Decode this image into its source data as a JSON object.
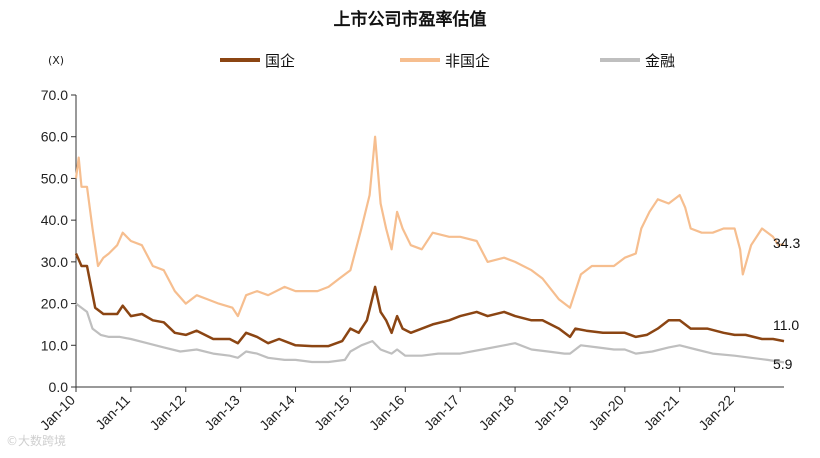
{
  "chart_data": {
    "type": "line",
    "title": "上市公司市盈率估值",
    "unit_label": "(X)",
    "ylim": [
      0,
      70
    ],
    "y_ticks": [
      "0.0",
      "10.0",
      "20.0",
      "30.0",
      "40.0",
      "50.0",
      "60.0",
      "70.0"
    ],
    "x_ticks": [
      "Jan-10",
      "Jan-11",
      "Jan-12",
      "Jan-13",
      "Jan-14",
      "Jan-15",
      "Jan-16",
      "Jan-17",
      "Jan-18",
      "Jan-19",
      "Jan-20",
      "Jan-21",
      "Jan-22"
    ],
    "x_range": [
      2010.0,
      2022.9
    ],
    "legend_position": "top",
    "grid": false,
    "series": [
      {
        "name": "国企",
        "color": "#8B4513",
        "end_label": "11.0",
        "points": [
          [
            2010.0,
            32
          ],
          [
            2010.1,
            29
          ],
          [
            2010.2,
            29
          ],
          [
            2010.35,
            19
          ],
          [
            2010.5,
            17.5
          ],
          [
            2010.75,
            17.5
          ],
          [
            2010.85,
            19.5
          ],
          [
            2011.0,
            17
          ],
          [
            2011.2,
            17.5
          ],
          [
            2011.4,
            16
          ],
          [
            2011.6,
            15.5
          ],
          [
            2011.8,
            13
          ],
          [
            2012.0,
            12.5
          ],
          [
            2012.2,
            13.5
          ],
          [
            2012.5,
            11.5
          ],
          [
            2012.8,
            11.5
          ],
          [
            2012.95,
            10.5
          ],
          [
            2013.1,
            13
          ],
          [
            2013.3,
            12
          ],
          [
            2013.5,
            10.5
          ],
          [
            2013.7,
            11.5
          ],
          [
            2013.9,
            10.5
          ],
          [
            2014.0,
            10
          ],
          [
            2014.3,
            9.8
          ],
          [
            2014.6,
            9.8
          ],
          [
            2014.85,
            11
          ],
          [
            2015.0,
            14
          ],
          [
            2015.15,
            13
          ],
          [
            2015.3,
            16
          ],
          [
            2015.45,
            24
          ],
          [
            2015.55,
            18
          ],
          [
            2015.65,
            16
          ],
          [
            2015.75,
            13
          ],
          [
            2015.85,
            17
          ],
          [
            2015.95,
            14
          ],
          [
            2016.1,
            13
          ],
          [
            2016.5,
            15
          ],
          [
            2016.8,
            16
          ],
          [
            2017.0,
            17
          ],
          [
            2017.3,
            18
          ],
          [
            2017.5,
            17
          ],
          [
            2017.8,
            18
          ],
          [
            2018.0,
            17
          ],
          [
            2018.3,
            16
          ],
          [
            2018.5,
            16
          ],
          [
            2018.8,
            14
          ],
          [
            2019.0,
            12
          ],
          [
            2019.1,
            14
          ],
          [
            2019.3,
            13.5
          ],
          [
            2019.6,
            13
          ],
          [
            2019.8,
            13
          ],
          [
            2020.0,
            13
          ],
          [
            2020.2,
            12
          ],
          [
            2020.4,
            12.5
          ],
          [
            2020.6,
            14
          ],
          [
            2020.8,
            16
          ],
          [
            2021.0,
            16
          ],
          [
            2021.2,
            14
          ],
          [
            2021.5,
            14
          ],
          [
            2021.8,
            13
          ],
          [
            2022.0,
            12.5
          ],
          [
            2022.2,
            12.5
          ],
          [
            2022.5,
            11.5
          ],
          [
            2022.7,
            11.5
          ],
          [
            2022.9,
            11.0
          ]
        ]
      },
      {
        "name": "非国企",
        "color": "#F6BE8F",
        "end_label": "34.3",
        "points": [
          [
            2010.0,
            50
          ],
          [
            2010.05,
            55
          ],
          [
            2010.1,
            48
          ],
          [
            2010.2,
            48
          ],
          [
            2010.3,
            38
          ],
          [
            2010.4,
            29
          ],
          [
            2010.5,
            31
          ],
          [
            2010.6,
            32
          ],
          [
            2010.75,
            34
          ],
          [
            2010.85,
            37
          ],
          [
            2011.0,
            35
          ],
          [
            2011.2,
            34
          ],
          [
            2011.4,
            29
          ],
          [
            2011.6,
            28
          ],
          [
            2011.8,
            23
          ],
          [
            2012.0,
            20
          ],
          [
            2012.2,
            22
          ],
          [
            2012.4,
            21
          ],
          [
            2012.6,
            20
          ],
          [
            2012.85,
            19
          ],
          [
            2012.95,
            17
          ],
          [
            2013.1,
            22
          ],
          [
            2013.3,
            23
          ],
          [
            2013.5,
            22
          ],
          [
            2013.8,
            24
          ],
          [
            2014.0,
            23
          ],
          [
            2014.2,
            23
          ],
          [
            2014.4,
            23
          ],
          [
            2014.6,
            24
          ],
          [
            2014.8,
            26
          ],
          [
            2015.0,
            28
          ],
          [
            2015.2,
            38
          ],
          [
            2015.35,
            46
          ],
          [
            2015.45,
            60
          ],
          [
            2015.55,
            44
          ],
          [
            2015.65,
            38
          ],
          [
            2015.75,
            33
          ],
          [
            2015.85,
            42
          ],
          [
            2015.95,
            38
          ],
          [
            2016.1,
            34
          ],
          [
            2016.3,
            33
          ],
          [
            2016.5,
            37
          ],
          [
            2016.8,
            36
          ],
          [
            2017.0,
            36
          ],
          [
            2017.3,
            35
          ],
          [
            2017.5,
            30
          ],
          [
            2017.8,
            31
          ],
          [
            2018.0,
            30
          ],
          [
            2018.3,
            28
          ],
          [
            2018.5,
            26
          ],
          [
            2018.8,
            21
          ],
          [
            2019.0,
            19
          ],
          [
            2019.2,
            27
          ],
          [
            2019.4,
            29
          ],
          [
            2019.6,
            29
          ],
          [
            2019.8,
            29
          ],
          [
            2020.0,
            31
          ],
          [
            2020.2,
            32
          ],
          [
            2020.3,
            38
          ],
          [
            2020.45,
            42
          ],
          [
            2020.6,
            45
          ],
          [
            2020.8,
            44
          ],
          [
            2021.0,
            46
          ],
          [
            2021.1,
            43
          ],
          [
            2021.2,
            38
          ],
          [
            2021.4,
            37
          ],
          [
            2021.6,
            37
          ],
          [
            2021.8,
            38
          ],
          [
            2022.0,
            38
          ],
          [
            2022.1,
            33
          ],
          [
            2022.15,
            27
          ],
          [
            2022.3,
            34
          ],
          [
            2022.5,
            38
          ],
          [
            2022.7,
            36
          ],
          [
            2022.8,
            34
          ],
          [
            2022.9,
            34.3
          ]
        ]
      },
      {
        "name": "金融",
        "color": "#BFBFBF",
        "end_label": "5.9",
        "points": [
          [
            2010.0,
            20
          ],
          [
            2010.1,
            19
          ],
          [
            2010.2,
            18
          ],
          [
            2010.3,
            14
          ],
          [
            2010.45,
            12.5
          ],
          [
            2010.6,
            12
          ],
          [
            2010.8,
            12
          ],
          [
            2011.0,
            11.5
          ],
          [
            2011.3,
            10.5
          ],
          [
            2011.6,
            9.5
          ],
          [
            2011.9,
            8.5
          ],
          [
            2012.2,
            9
          ],
          [
            2012.5,
            8
          ],
          [
            2012.8,
            7.5
          ],
          [
            2012.95,
            7
          ],
          [
            2013.1,
            8.5
          ],
          [
            2013.3,
            8
          ],
          [
            2013.5,
            7
          ],
          [
            2013.8,
            6.5
          ],
          [
            2014.0,
            6.5
          ],
          [
            2014.3,
            6
          ],
          [
            2014.6,
            6
          ],
          [
            2014.9,
            6.5
          ],
          [
            2015.0,
            8.5
          ],
          [
            2015.2,
            10
          ],
          [
            2015.4,
            11
          ],
          [
            2015.55,
            9
          ],
          [
            2015.75,
            8
          ],
          [
            2015.85,
            9
          ],
          [
            2016.0,
            7.5
          ],
          [
            2016.3,
            7.5
          ],
          [
            2016.6,
            8
          ],
          [
            2017.0,
            8
          ],
          [
            2017.4,
            9
          ],
          [
            2017.8,
            10
          ],
          [
            2018.0,
            10.5
          ],
          [
            2018.3,
            9
          ],
          [
            2018.6,
            8.5
          ],
          [
            2018.9,
            8
          ],
          [
            2019.0,
            8
          ],
          [
            2019.2,
            10
          ],
          [
            2019.5,
            9.5
          ],
          [
            2019.8,
            9
          ],
          [
            2020.0,
            9
          ],
          [
            2020.2,
            8
          ],
          [
            2020.5,
            8.5
          ],
          [
            2020.8,
            9.5
          ],
          [
            2021.0,
            10
          ],
          [
            2021.3,
            9
          ],
          [
            2021.6,
            8
          ],
          [
            2022.0,
            7.5
          ],
          [
            2022.3,
            7
          ],
          [
            2022.6,
            6.5
          ],
          [
            2022.9,
            5.9
          ]
        ]
      }
    ]
  },
  "watermark": "©大数跨境"
}
